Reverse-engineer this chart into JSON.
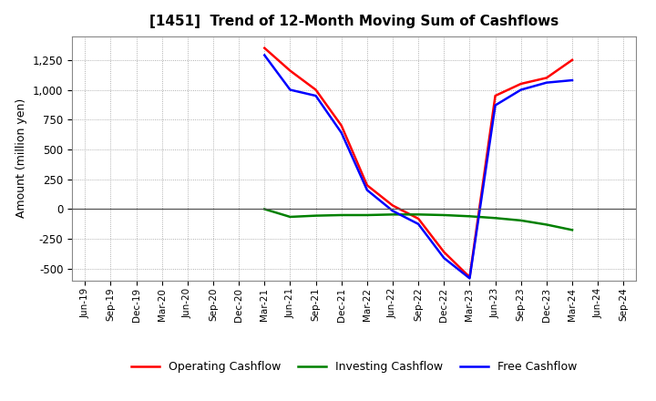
{
  "title": "[1451]  Trend of 12-Month Moving Sum of Cashflows",
  "ylabel": "Amount (million yen)",
  "ylim": [
    -600,
    1450
  ],
  "yticks": [
    -500,
    -250,
    0,
    250,
    500,
    750,
    1000,
    1250
  ],
  "background_color": "#ffffff",
  "plot_bg_color": "#ffffff",
  "grid_color": "#aaaaaa",
  "title_fontsize": 11,
  "axis_fontsize": 9,
  "legend_fontsize": 9,
  "date_labels": [
    "Jun-19",
    "Sep-19",
    "Dec-19",
    "Mar-20",
    "Jun-20",
    "Sep-20",
    "Dec-20",
    "Mar-21",
    "Jun-21",
    "Sep-21",
    "Dec-21",
    "Mar-22",
    "Jun-22",
    "Sep-22",
    "Dec-22",
    "Mar-23",
    "Jun-23",
    "Sep-23",
    "Dec-23",
    "Mar-24",
    "Jun-24",
    "Sep-24"
  ],
  "operating_cashflow": [
    null,
    null,
    null,
    null,
    null,
    null,
    null,
    1350,
    1160,
    1000,
    700,
    200,
    30,
    -80,
    -360,
    -570,
    950,
    1050,
    1100,
    1250,
    null,
    null
  ],
  "investing_cashflow": [
    null,
    null,
    null,
    null,
    null,
    null,
    null,
    0,
    -65,
    -55,
    -50,
    -50,
    -45,
    -45,
    -50,
    -60,
    -75,
    -95,
    -130,
    -175,
    null,
    null
  ],
  "free_cashflow": [
    null,
    null,
    null,
    null,
    null,
    null,
    null,
    1290,
    1000,
    950,
    640,
    160,
    -15,
    -125,
    -410,
    -580,
    870,
    1000,
    1060,
    1080,
    null,
    null
  ],
  "op_color": "#ff0000",
  "inv_color": "#008000",
  "free_color": "#0000ff",
  "line_width": 1.8
}
